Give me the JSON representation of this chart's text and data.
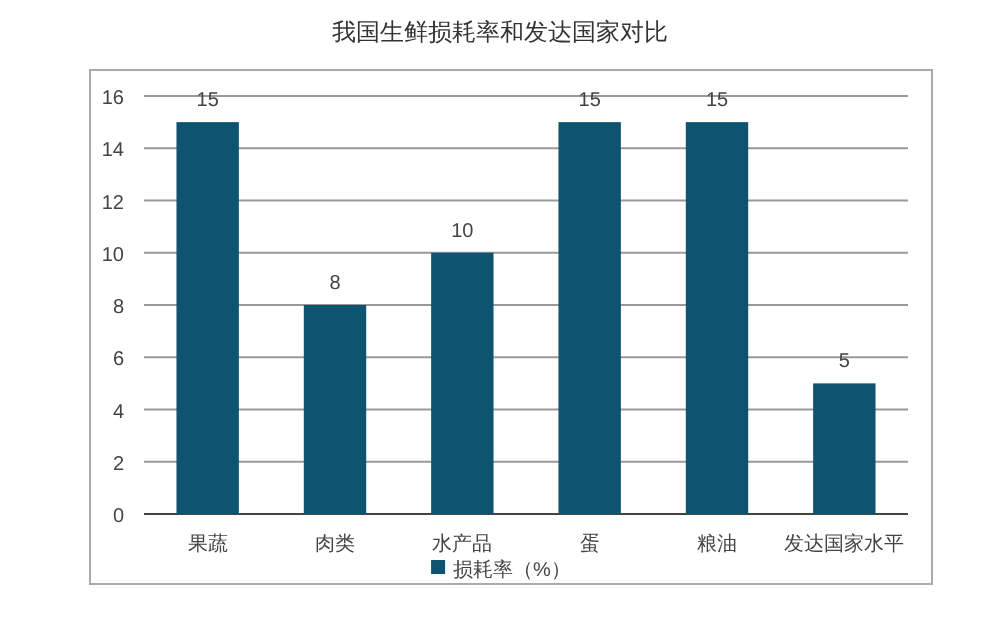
{
  "chart_data": {
    "type": "bar",
    "title": "我国生鲜损耗率和发达国家对比",
    "categories": [
      "果蔬",
      "肉类",
      "水产品",
      "蛋",
      "粮油",
      "发达国家水平"
    ],
    "series": [
      {
        "name": "损耗率（%）",
        "color": "#0e5470",
        "values": [
          15,
          8,
          10,
          15,
          15,
          5
        ]
      }
    ],
    "ylim": [
      0,
      16
    ],
    "yticks": [
      0,
      2,
      4,
      6,
      8,
      10,
      12,
      14,
      16
    ],
    "grid": "y",
    "legend": "bottom",
    "data_labels": true
  }
}
